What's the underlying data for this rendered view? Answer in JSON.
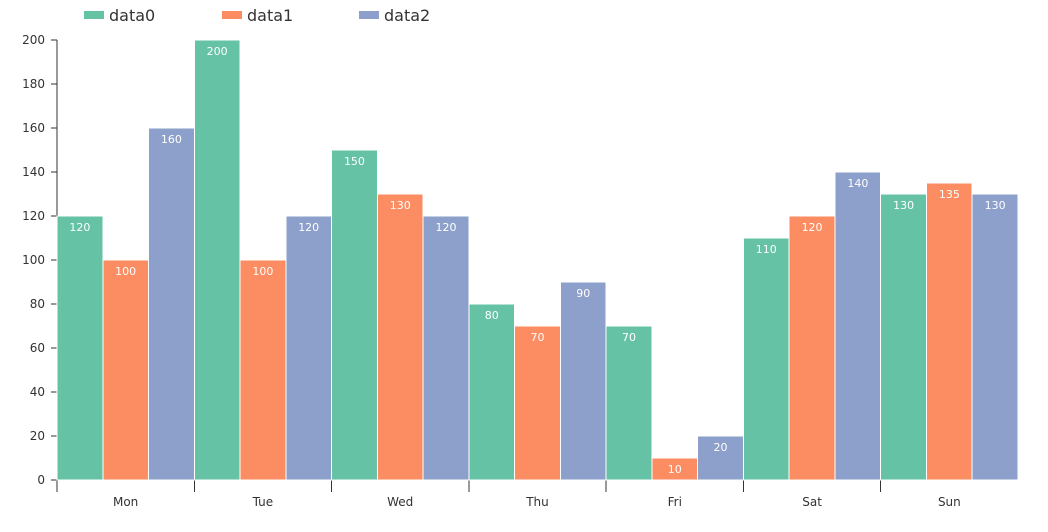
{
  "chart_data": {
    "type": "bar",
    "categories": [
      "Mon",
      "Tue",
      "Wed",
      "Thu",
      "Fri",
      "Sat",
      "Sun"
    ],
    "series": [
      {
        "name": "data0",
        "color": "#66c2a5",
        "values": [
          120,
          200,
          150,
          80,
          70,
          110,
          130
        ]
      },
      {
        "name": "data1",
        "color": "#fc8d62",
        "values": [
          100,
          100,
          130,
          70,
          10,
          120,
          135
        ]
      },
      {
        "name": "data2",
        "color": "#8da0cb",
        "values": [
          160,
          120,
          120,
          90,
          20,
          140,
          130
        ]
      }
    ],
    "ylim": [
      0,
      200
    ],
    "yticks": [
      0,
      20,
      40,
      60,
      80,
      100,
      120,
      140,
      160,
      180,
      200
    ],
    "legend_position": "top-left",
    "grid": false,
    "data_labels": true
  }
}
